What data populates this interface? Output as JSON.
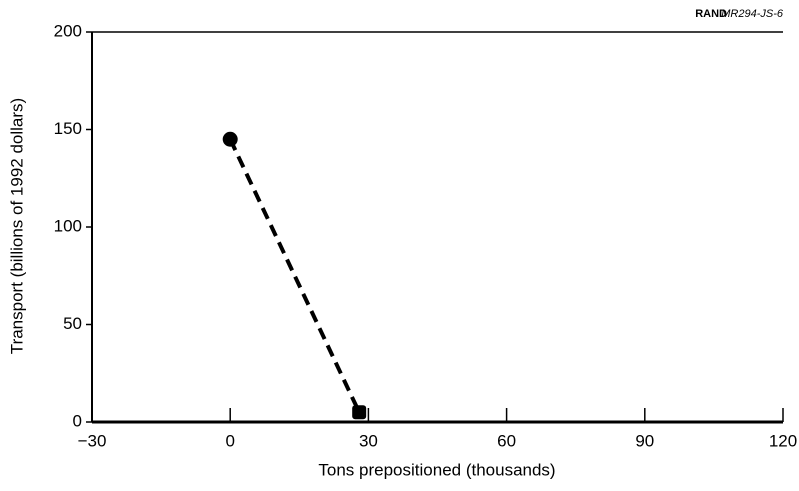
{
  "chart_data": {
    "type": "line",
    "source": "RAND",
    "source_id": "MR294-JS-6",
    "x_label": "Tons prepositioned (thousands)",
    "y_label": "Transport (billions of 1992 dollars)",
    "x": [
      0,
      28
    ],
    "series": [
      {
        "values": [
          145,
          5
        ],
        "color": "#000000",
        "markers": [
          "circle",
          "square"
        ],
        "dashed": true
      }
    ],
    "xlim": [
      -30,
      120
    ],
    "xticks": [
      {
        "value": -30,
        "label": "−30"
      },
      0,
      30,
      60,
      90,
      120
    ],
    "ylim": [
      0,
      200
    ],
    "yticks": [
      0,
      50,
      100,
      150,
      200
    ],
    "grid": false
  }
}
